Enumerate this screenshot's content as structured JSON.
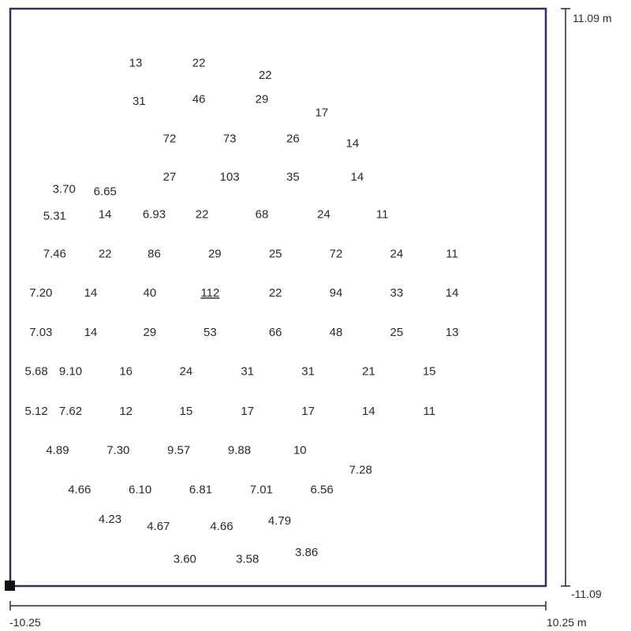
{
  "room": {
    "border_color": "#3a2a5a"
  },
  "dimensions": {
    "y_max": "11.09 m",
    "y_min": "-11.09",
    "x_min": "-10.25",
    "x_max": "10.25 m"
  },
  "readings": [
    {
      "text": "13",
      "x": -5.45,
      "y": 9.02
    },
    {
      "text": "22",
      "x": -3.03,
      "y": 9.02
    },
    {
      "text": "22",
      "x": -0.49,
      "y": 8.54
    },
    {
      "text": "31",
      "x": -5.32,
      "y": 7.54
    },
    {
      "text": "46",
      "x": -3.03,
      "y": 7.62
    },
    {
      "text": "29",
      "x": -0.62,
      "y": 7.62
    },
    {
      "text": "17",
      "x": 1.67,
      "y": 7.1
    },
    {
      "text": "72",
      "x": -4.15,
      "y": 6.1
    },
    {
      "text": "73",
      "x": -1.85,
      "y": 6.1
    },
    {
      "text": "26",
      "x": 0.57,
      "y": 6.1
    },
    {
      "text": "14",
      "x": 2.85,
      "y": 5.92
    },
    {
      "text": "27",
      "x": -4.15,
      "y": 4.64
    },
    {
      "text": "103",
      "x": -1.85,
      "y": 4.64
    },
    {
      "text": "35",
      "x": 0.57,
      "y": 4.64
    },
    {
      "text": "14",
      "x": 3.03,
      "y": 4.64
    },
    {
      "text": "3.70",
      "x": -8.19,
      "y": 4.16
    },
    {
      "text": "6.65",
      "x": -6.62,
      "y": 4.07
    },
    {
      "text": "5.31",
      "x": -8.55,
      "y": 3.13
    },
    {
      "text": "14",
      "x": -6.62,
      "y": 3.19
    },
    {
      "text": "6.93",
      "x": -4.74,
      "y": 3.19
    },
    {
      "text": "22",
      "x": -2.91,
      "y": 3.19
    },
    {
      "text": "68",
      "x": -0.62,
      "y": 3.19
    },
    {
      "text": "24",
      "x": 1.75,
      "y": 3.19
    },
    {
      "text": "11",
      "x": 3.99,
      "y": 3.19
    },
    {
      "text": "7.46",
      "x": -8.55,
      "y": 1.68
    },
    {
      "text": "22",
      "x": -6.62,
      "y": 1.68
    },
    {
      "text": "86",
      "x": -4.74,
      "y": 1.68
    },
    {
      "text": "29",
      "x": -2.42,
      "y": 1.68
    },
    {
      "text": "25",
      "x": -0.1,
      "y": 1.68
    },
    {
      "text": "72",
      "x": 2.22,
      "y": 1.68
    },
    {
      "text": "24",
      "x": 4.54,
      "y": 1.68
    },
    {
      "text": "11",
      "x": 6.66,
      "y": 1.68
    },
    {
      "text": "7.20",
      "x": -9.08,
      "y": 0.18
    },
    {
      "text": "14",
      "x": -7.17,
      "y": 0.18
    },
    {
      "text": "40",
      "x": -4.91,
      "y": 0.18
    },
    {
      "text": "112",
      "x": -2.6,
      "y": 0.18,
      "underline": true
    },
    {
      "text": "22",
      "x": -0.1,
      "y": 0.18
    },
    {
      "text": "94",
      "x": 2.22,
      "y": 0.18
    },
    {
      "text": "33",
      "x": 4.54,
      "y": 0.18
    },
    {
      "text": "14",
      "x": 6.66,
      "y": 0.18
    },
    {
      "text": "7.03",
      "x": -9.08,
      "y": -1.33
    },
    {
      "text": "14",
      "x": -7.17,
      "y": -1.33
    },
    {
      "text": "29",
      "x": -4.91,
      "y": -1.33
    },
    {
      "text": "53",
      "x": -2.6,
      "y": -1.33
    },
    {
      "text": "66",
      "x": -0.1,
      "y": -1.33
    },
    {
      "text": "48",
      "x": 2.22,
      "y": -1.33
    },
    {
      "text": "25",
      "x": 4.54,
      "y": -1.33
    },
    {
      "text": "13",
      "x": 6.66,
      "y": -1.33
    },
    {
      "text": "5.68",
      "x": -9.25,
      "y": -2.84
    },
    {
      "text": "9.10",
      "x": -7.94,
      "y": -2.84
    },
    {
      "text": "16",
      "x": -5.82,
      "y": -2.84
    },
    {
      "text": "24",
      "x": -3.52,
      "y": -2.84
    },
    {
      "text": "31",
      "x": -1.17,
      "y": -2.84
    },
    {
      "text": "31",
      "x": 1.15,
      "y": -2.84
    },
    {
      "text": "21",
      "x": 3.47,
      "y": -2.84
    },
    {
      "text": "15",
      "x": 5.79,
      "y": -2.84
    },
    {
      "text": "5.12",
      "x": -9.25,
      "y": -4.36
    },
    {
      "text": "7.62",
      "x": -7.94,
      "y": -4.36
    },
    {
      "text": "12",
      "x": -5.82,
      "y": -4.36
    },
    {
      "text": "15",
      "x": -3.52,
      "y": -4.36
    },
    {
      "text": "17",
      "x": -1.17,
      "y": -4.36
    },
    {
      "text": "17",
      "x": 1.15,
      "y": -4.36
    },
    {
      "text": "14",
      "x": 3.47,
      "y": -4.36
    },
    {
      "text": "11",
      "x": 5.79,
      "y": -4.36
    },
    {
      "text": "4.89",
      "x": -8.44,
      "y": -5.87
    },
    {
      "text": "7.30",
      "x": -6.12,
      "y": -5.87
    },
    {
      "text": "9.57",
      "x": -3.8,
      "y": -5.87
    },
    {
      "text": "9.88",
      "x": -1.48,
      "y": -5.87
    },
    {
      "text": "10",
      "x": 0.84,
      "y": -5.87
    },
    {
      "text": "7.28",
      "x": 3.16,
      "y": -6.62
    },
    {
      "text": "4.66",
      "x": -7.6,
      "y": -7.38
    },
    {
      "text": "6.10",
      "x": -5.28,
      "y": -7.38
    },
    {
      "text": "6.81",
      "x": -2.96,
      "y": -7.38
    },
    {
      "text": "7.01",
      "x": -0.64,
      "y": -7.38
    },
    {
      "text": "6.56",
      "x": 1.68,
      "y": -7.38
    },
    {
      "text": "4.23",
      "x": -6.43,
      "y": -8.52
    },
    {
      "text": "4.67",
      "x": -4.58,
      "y": -8.79
    },
    {
      "text": "4.66",
      "x": -2.16,
      "y": -8.79
    },
    {
      "text": "4.79",
      "x": 0.06,
      "y": -8.58
    },
    {
      "text": "3.60",
      "x": -3.57,
      "y": -10.04
    },
    {
      "text": "3.58",
      "x": -1.17,
      "y": -10.04
    },
    {
      "text": "3.86",
      "x": 1.09,
      "y": -9.79
    }
  ]
}
